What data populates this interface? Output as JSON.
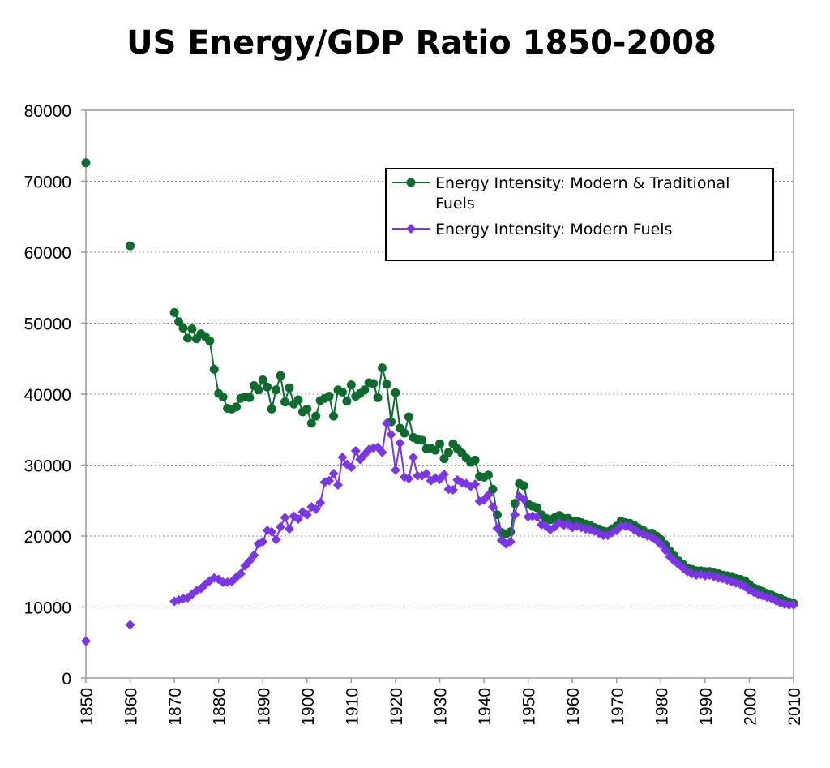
{
  "chart_data": {
    "type": "line",
    "title": "US Energy/GDP Ratio 1850-2008",
    "xlabel": "",
    "ylabel": "",
    "xlim": [
      1850,
      2010
    ],
    "ylim": [
      0,
      80000
    ],
    "x_ticks": [
      "1850",
      "1860",
      "1870",
      "1880",
      "1890",
      "1900",
      "1910",
      "1920",
      "1930",
      "1940",
      "1950",
      "1960",
      "1970",
      "1980",
      "1990",
      "2000",
      "2010"
    ],
    "y_ticks": [
      "0",
      "10000",
      "20000",
      "30000",
      "40000",
      "50000",
      "60000",
      "70000",
      "80000"
    ],
    "grid": "horizontal dotted",
    "legend_position": "top-right",
    "series": [
      {
        "name": "Energy Intensity: Modern & Traditional Fuels",
        "color": "#0e6b2e",
        "marker": "circle",
        "points": [
          [
            1850,
            72600
          ],
          [
            1860,
            60900
          ],
          [
            1870,
            51500
          ],
          [
            1871,
            50200
          ],
          [
            1872,
            49300
          ],
          [
            1873,
            47900
          ],
          [
            1874,
            49200
          ],
          [
            1875,
            47800
          ],
          [
            1876,
            48500
          ],
          [
            1877,
            48100
          ],
          [
            1878,
            47500
          ],
          [
            1879,
            43500
          ],
          [
            1880,
            40100
          ],
          [
            1881,
            39600
          ],
          [
            1882,
            38000
          ],
          [
            1883,
            37900
          ],
          [
            1884,
            38200
          ],
          [
            1885,
            39400
          ],
          [
            1886,
            39600
          ],
          [
            1887,
            39500
          ],
          [
            1888,
            41200
          ],
          [
            1889,
            40600
          ],
          [
            1890,
            42000
          ],
          [
            1891,
            41000
          ],
          [
            1892,
            37900
          ],
          [
            1893,
            40600
          ],
          [
            1894,
            42600
          ],
          [
            1895,
            38900
          ],
          [
            1896,
            40900
          ],
          [
            1897,
            38600
          ],
          [
            1898,
            39200
          ],
          [
            1899,
            37500
          ],
          [
            1900,
            37900
          ],
          [
            1901,
            35900
          ],
          [
            1902,
            36900
          ],
          [
            1903,
            39100
          ],
          [
            1904,
            39400
          ],
          [
            1905,
            39700
          ],
          [
            1906,
            36900
          ],
          [
            1907,
            40600
          ],
          [
            1908,
            40300
          ],
          [
            1909,
            39000
          ],
          [
            1910,
            41300
          ],
          [
            1911,
            39700
          ],
          [
            1912,
            40100
          ],
          [
            1913,
            40600
          ],
          [
            1914,
            41600
          ],
          [
            1915,
            41500
          ],
          [
            1916,
            39500
          ],
          [
            1917,
            43700
          ],
          [
            1918,
            41400
          ],
          [
            1919,
            36100
          ],
          [
            1920,
            40200
          ],
          [
            1921,
            35200
          ],
          [
            1922,
            34500
          ],
          [
            1923,
            36800
          ],
          [
            1924,
            33900
          ],
          [
            1925,
            33600
          ],
          [
            1926,
            33500
          ],
          [
            1927,
            32300
          ],
          [
            1928,
            32400
          ],
          [
            1929,
            32100
          ],
          [
            1930,
            33000
          ],
          [
            1931,
            30900
          ],
          [
            1932,
            31800
          ],
          [
            1933,
            33000
          ],
          [
            1934,
            32300
          ],
          [
            1935,
            31700
          ],
          [
            1936,
            31000
          ],
          [
            1937,
            30400
          ],
          [
            1938,
            30700
          ],
          [
            1939,
            28400
          ],
          [
            1940,
            28300
          ],
          [
            1941,
            28600
          ],
          [
            1942,
            26600
          ],
          [
            1943,
            23000
          ],
          [
            1944,
            20500
          ],
          [
            1945,
            20300
          ],
          [
            1946,
            20600
          ],
          [
            1947,
            24600
          ],
          [
            1948,
            27400
          ],
          [
            1949,
            27100
          ],
          [
            1950,
            24500
          ],
          [
            1951,
            24200
          ],
          [
            1952,
            24000
          ],
          [
            1953,
            23000
          ],
          [
            1954,
            22500
          ],
          [
            1955,
            22300
          ],
          [
            1956,
            22600
          ],
          [
            1957,
            22900
          ],
          [
            1958,
            22500
          ],
          [
            1959,
            22500
          ],
          [
            1960,
            22100
          ],
          [
            1961,
            22100
          ],
          [
            1962,
            21900
          ],
          [
            1963,
            21700
          ],
          [
            1964,
            21500
          ],
          [
            1965,
            21200
          ],
          [
            1966,
            21000
          ],
          [
            1967,
            20700
          ],
          [
            1968,
            20600
          ],
          [
            1969,
            21000
          ],
          [
            1970,
            21400
          ],
          [
            1971,
            22100
          ],
          [
            1972,
            21900
          ],
          [
            1973,
            21800
          ],
          [
            1974,
            21500
          ],
          [
            1975,
            21100
          ],
          [
            1976,
            20800
          ],
          [
            1977,
            20400
          ],
          [
            1978,
            20400
          ],
          [
            1979,
            20000
          ],
          [
            1980,
            19500
          ],
          [
            1981,
            18800
          ],
          [
            1982,
            17900
          ],
          [
            1983,
            17200
          ],
          [
            1984,
            16500
          ],
          [
            1985,
            16000
          ],
          [
            1986,
            15500
          ],
          [
            1987,
            15300
          ],
          [
            1988,
            15100
          ],
          [
            1989,
            15100
          ],
          [
            1990,
            15000
          ],
          [
            1991,
            15000
          ],
          [
            1992,
            14800
          ],
          [
            1993,
            14700
          ],
          [
            1994,
            14500
          ],
          [
            1995,
            14400
          ],
          [
            1996,
            14300
          ],
          [
            1997,
            14000
          ],
          [
            1998,
            13900
          ],
          [
            1999,
            13700
          ],
          [
            2000,
            13200
          ],
          [
            2001,
            12700
          ],
          [
            2002,
            12500
          ],
          [
            2003,
            12200
          ],
          [
            2004,
            11900
          ],
          [
            2005,
            11700
          ],
          [
            2006,
            11400
          ],
          [
            2007,
            11200
          ],
          [
            2008,
            10900
          ],
          [
            2009,
            10700
          ],
          [
            2010,
            10500
          ]
        ]
      },
      {
        "name": "Energy Intensity: Modern Fuels",
        "color": "#7a35e6",
        "marker": "diamond",
        "points": [
          [
            1850,
            5200
          ],
          [
            1860,
            7500
          ],
          [
            1870,
            10800
          ],
          [
            1871,
            11000
          ],
          [
            1872,
            11200
          ],
          [
            1873,
            11300
          ],
          [
            1874,
            11800
          ],
          [
            1875,
            12300
          ],
          [
            1876,
            12600
          ],
          [
            1877,
            13200
          ],
          [
            1878,
            13700
          ],
          [
            1879,
            14100
          ],
          [
            1880,
            13900
          ],
          [
            1881,
            13500
          ],
          [
            1882,
            13500
          ],
          [
            1883,
            13600
          ],
          [
            1884,
            14200
          ],
          [
            1885,
            14700
          ],
          [
            1886,
            15800
          ],
          [
            1887,
            16500
          ],
          [
            1888,
            17300
          ],
          [
            1889,
            18900
          ],
          [
            1890,
            19200
          ],
          [
            1891,
            20800
          ],
          [
            1892,
            20600
          ],
          [
            1893,
            19500
          ],
          [
            1894,
            21300
          ],
          [
            1895,
            22600
          ],
          [
            1896,
            21000
          ],
          [
            1897,
            22800
          ],
          [
            1898,
            22400
          ],
          [
            1899,
            23400
          ],
          [
            1900,
            23000
          ],
          [
            1901,
            24100
          ],
          [
            1902,
            23800
          ],
          [
            1903,
            24700
          ],
          [
            1904,
            27600
          ],
          [
            1905,
            27800
          ],
          [
            1906,
            28800
          ],
          [
            1907,
            27200
          ],
          [
            1908,
            31100
          ],
          [
            1909,
            30100
          ],
          [
            1910,
            29700
          ],
          [
            1911,
            32000
          ],
          [
            1912,
            30800
          ],
          [
            1913,
            31500
          ],
          [
            1914,
            32200
          ],
          [
            1915,
            32400
          ],
          [
            1916,
            32500
          ],
          [
            1917,
            31800
          ],
          [
            1918,
            35900
          ],
          [
            1919,
            34300
          ],
          [
            1920,
            29300
          ],
          [
            1921,
            33100
          ],
          [
            1922,
            28300
          ],
          [
            1923,
            28100
          ],
          [
            1924,
            31100
          ],
          [
            1925,
            28500
          ],
          [
            1926,
            28500
          ],
          [
            1927,
            28800
          ],
          [
            1928,
            27800
          ],
          [
            1929,
            28200
          ],
          [
            1930,
            28000
          ],
          [
            1931,
            28700
          ],
          [
            1932,
            26600
          ],
          [
            1933,
            26500
          ],
          [
            1934,
            27900
          ],
          [
            1935,
            27500
          ],
          [
            1936,
            27400
          ],
          [
            1937,
            27000
          ],
          [
            1938,
            27300
          ],
          [
            1939,
            24900
          ],
          [
            1940,
            25100
          ],
          [
            1941,
            25800
          ],
          [
            1942,
            24100
          ],
          [
            1943,
            21100
          ],
          [
            1944,
            19400
          ],
          [
            1945,
            18900
          ],
          [
            1946,
            19200
          ],
          [
            1947,
            23000
          ],
          [
            1948,
            25600
          ],
          [
            1949,
            25200
          ],
          [
            1950,
            22700
          ],
          [
            1951,
            22800
          ],
          [
            1952,
            22700
          ],
          [
            1953,
            21600
          ],
          [
            1954,
            21400
          ],
          [
            1955,
            20900
          ],
          [
            1956,
            21300
          ],
          [
            1957,
            21900
          ],
          [
            1958,
            21500
          ],
          [
            1959,
            21700
          ],
          [
            1960,
            21200
          ],
          [
            1961,
            21400
          ],
          [
            1962,
            21200
          ],
          [
            1963,
            21000
          ],
          [
            1964,
            20900
          ],
          [
            1965,
            20700
          ],
          [
            1966,
            20400
          ],
          [
            1967,
            20100
          ],
          [
            1968,
            20100
          ],
          [
            1969,
            20500
          ],
          [
            1970,
            20800
          ],
          [
            1971,
            21400
          ],
          [
            1972,
            21400
          ],
          [
            1973,
            21300
          ],
          [
            1974,
            20900
          ],
          [
            1975,
            20500
          ],
          [
            1976,
            20300
          ],
          [
            1977,
            20000
          ],
          [
            1978,
            19800
          ],
          [
            1979,
            19400
          ],
          [
            1980,
            18800
          ],
          [
            1981,
            18000
          ],
          [
            1982,
            17100
          ],
          [
            1983,
            16500
          ],
          [
            1984,
            16000
          ],
          [
            1985,
            15500
          ],
          [
            1986,
            15000
          ],
          [
            1987,
            14700
          ],
          [
            1988,
            14500
          ],
          [
            1989,
            14600
          ],
          [
            1990,
            14400
          ],
          [
            1991,
            14500
          ],
          [
            1992,
            14300
          ],
          [
            1993,
            14100
          ],
          [
            1994,
            14000
          ],
          [
            1995,
            13800
          ],
          [
            1996,
            13600
          ],
          [
            1997,
            13400
          ],
          [
            1998,
            13200
          ],
          [
            1999,
            12900
          ],
          [
            2000,
            12400
          ],
          [
            2001,
            12100
          ],
          [
            2002,
            11800
          ],
          [
            2003,
            11600
          ],
          [
            2004,
            11400
          ],
          [
            2005,
            11200
          ],
          [
            2006,
            10900
          ],
          [
            2007,
            10600
          ],
          [
            2008,
            10400
          ],
          [
            2009,
            10300
          ],
          [
            2010,
            10300
          ]
        ]
      }
    ]
  }
}
